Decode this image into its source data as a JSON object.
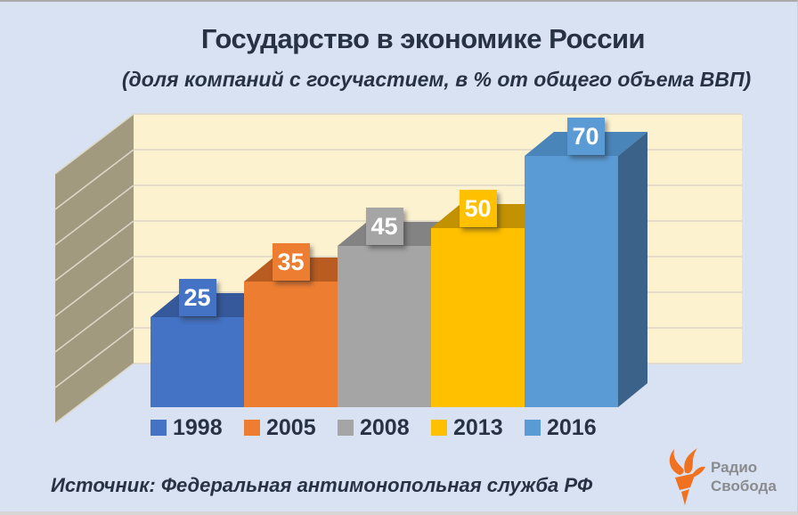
{
  "header": {
    "title": "Государство в экономике России",
    "subtitle": "(доля компаний с госучастием, в % от общего объема ВВП)"
  },
  "chart_data": {
    "type": "bar",
    "style": "3d-column",
    "title": "Государство в экономике России",
    "subtitle": "(доля компаний с госучастием, в % от общего объема ВВП)",
    "categories": [
      "1998",
      "2005",
      "2008",
      "2013",
      "2016"
    ],
    "values": [
      25,
      35,
      45,
      50,
      70
    ],
    "data_labels": [
      "25",
      "35",
      "45",
      "50",
      "70"
    ],
    "ylabel": "% от общего объема ВВП",
    "ylim": [
      0,
      70
    ],
    "gridline_step": 10,
    "grid": "on",
    "legend_position": "bottom",
    "bar_colors_front": [
      "#4472c4",
      "#ed7d31",
      "#a5a5a5",
      "#ffc000",
      "#5b9bd5"
    ],
    "bar_colors_top": [
      "#35599b",
      "#b85c21",
      "#838383",
      "#c29203",
      "#4a85ba"
    ],
    "bar_color_side_last": "#3b6389",
    "label_text_color": "#ffffff"
  },
  "footer": {
    "source": "Источник: Федеральная антимонопольная служба РФ"
  },
  "branding": {
    "name_line1": "Радио",
    "name_line2": "Свобода",
    "accent_color": "#f07220",
    "text_color": "#8a8b8e"
  },
  "theme": {
    "background": "#d9e2f3",
    "back_wall": "#fdf2d0",
    "side_wall": "#a29a7e",
    "grid_line": "#dcd8c9",
    "text_color": "#273344"
  }
}
